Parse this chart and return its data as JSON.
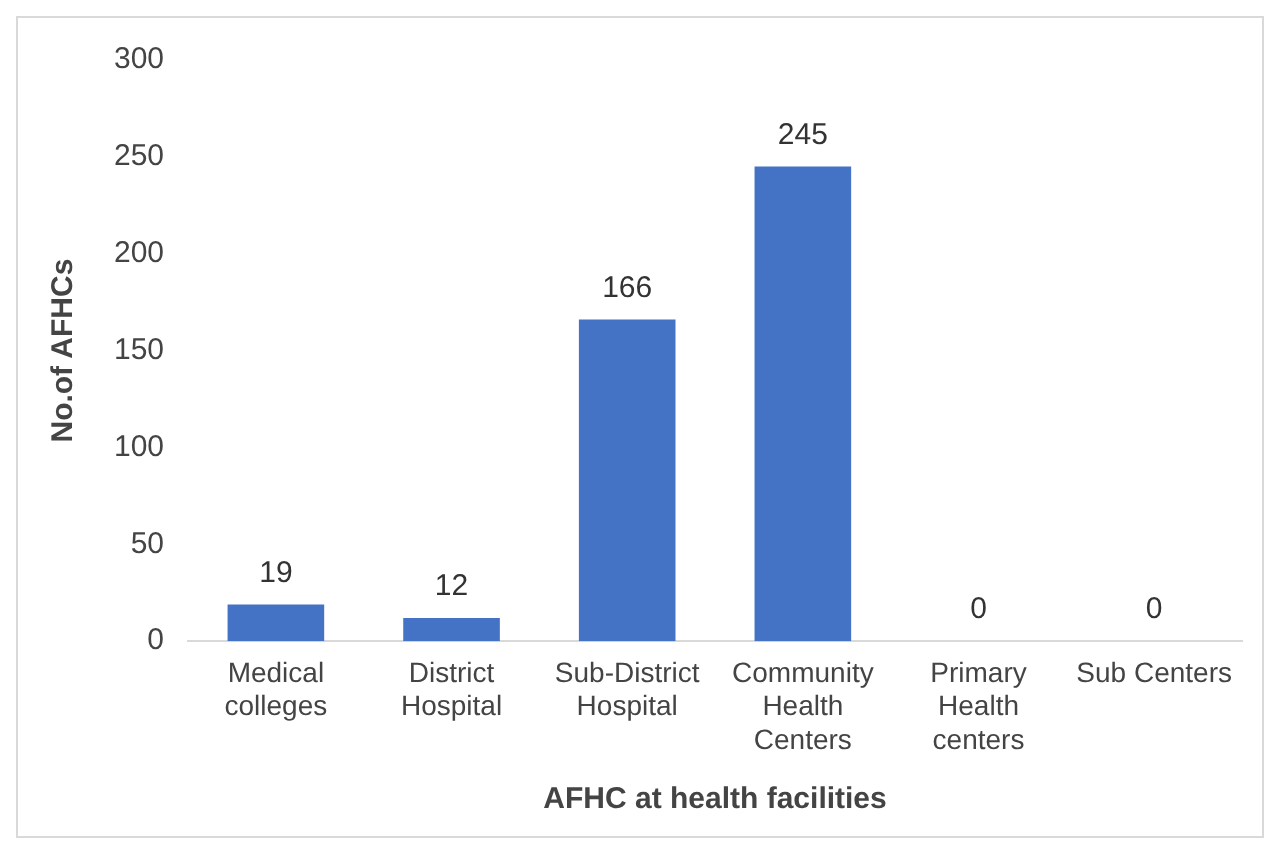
{
  "chart_data": {
    "type": "bar",
    "xlabel": "AFHC at health facilities",
    "ylabel": "No.of AFHCs",
    "categories": [
      "Medical colleges",
      "District Hospital",
      "Sub-District Hospital",
      "Community Health Centers",
      "Primary Health centers",
      "Sub Centers"
    ],
    "values": [
      19,
      12,
      166,
      245,
      0,
      0
    ],
    "color": "#4472c4",
    "ylim": [
      0,
      300
    ],
    "yticks": [
      0,
      50,
      100,
      150,
      200,
      250,
      300
    ],
    "grid": false,
    "legend": false,
    "data_labels": true
  }
}
